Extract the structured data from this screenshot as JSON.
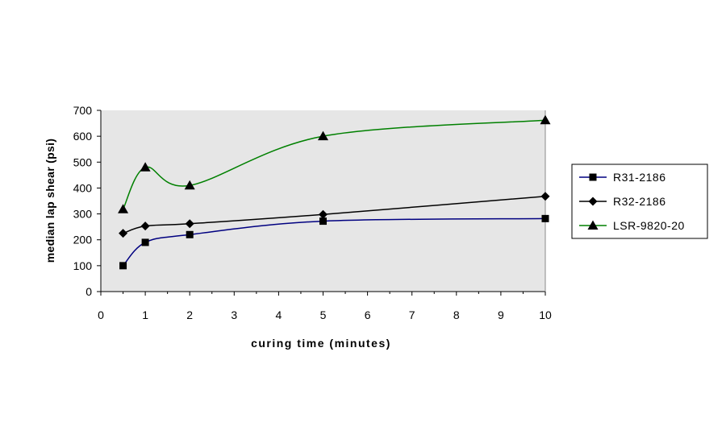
{
  "chart_data": {
    "type": "line",
    "title": "",
    "xlabel": "curing time (minutes)",
    "ylabel": "median lap shear (psi)",
    "xlim": [
      0,
      10
    ],
    "ylim": [
      0,
      700
    ],
    "xticks": [
      0,
      1,
      2,
      3,
      4,
      5,
      6,
      7,
      8,
      9,
      10
    ],
    "yticks": [
      0,
      100,
      200,
      300,
      400,
      500,
      600,
      700
    ],
    "grid": false,
    "plot_background": "#e6e6e6",
    "legend_position": "right",
    "series": [
      {
        "name": "R31-2186",
        "color": "#000080",
        "marker": "square",
        "x": [
          0.5,
          1,
          2,
          5,
          10
        ],
        "y": [
          100,
          190,
          220,
          272,
          282
        ]
      },
      {
        "name": "R32-2186",
        "color": "#000000",
        "marker": "diamond",
        "x": [
          0.5,
          1,
          2,
          5,
          10
        ],
        "y": [
          225,
          253,
          262,
          298,
          368
        ]
      },
      {
        "name": "LSR-9820-20",
        "color": "#008000",
        "marker": "triangle",
        "x": [
          0.5,
          1,
          2,
          5,
          10
        ],
        "y": [
          318,
          480,
          410,
          600,
          662
        ]
      }
    ]
  }
}
